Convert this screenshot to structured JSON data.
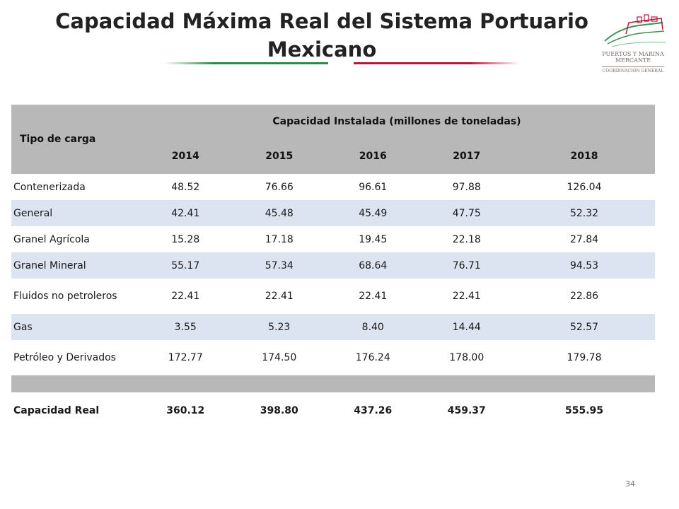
{
  "slide": {
    "title_line1": "Capacidad Máxima Real del Sistema Portuario",
    "title_line2": "Mexicano",
    "page_number": "34",
    "logo": {
      "text_line1": "PUERTOS Y MARINA",
      "text_line2": "MERCANTE",
      "text_sub": "COORDINACIÓN GENERAL",
      "icon": "ship-icon"
    },
    "colors": {
      "green_rule": "#2f8a4a",
      "red_rule": "#b5183a",
      "header_bg": "#b8b8b8",
      "stripe_bg": "#dde4f1"
    }
  },
  "table": {
    "header_type": "Tipo de carga",
    "header_group": "Capacidad Instalada (millones de toneladas)",
    "years": [
      "2014",
      "2015",
      "2016",
      "2017",
      "2018"
    ],
    "rows": [
      {
        "label": "Contenerizada",
        "values": [
          "48.52",
          "76.66",
          "96.61",
          "97.88",
          "126.04"
        ]
      },
      {
        "label": "General",
        "values": [
          "42.41",
          "45.48",
          "45.49",
          "47.75",
          "52.32"
        ]
      },
      {
        "label": "Granel Agrícola",
        "values": [
          "15.28",
          "17.18",
          "19.45",
          "22.18",
          "27.84"
        ]
      },
      {
        "label": "Granel Mineral",
        "values": [
          "55.17",
          "57.34",
          "68.64",
          "76.71",
          "94.53"
        ]
      },
      {
        "label": "Fluidos no petroleros",
        "values": [
          "22.41",
          "22.41",
          "22.41",
          "22.41",
          "22.86"
        ]
      },
      {
        "label": "Gas",
        "values": [
          "3.55",
          "5.23",
          "8.40",
          "14.44",
          "52.57"
        ]
      },
      {
        "label": "Petróleo y Derivados",
        "values": [
          "172.77",
          "174.50",
          "176.24",
          "178.00",
          "179.78"
        ]
      }
    ],
    "total": {
      "label": "Capacidad Real",
      "values": [
        "360.12",
        "398.80",
        "437.26",
        "459.37",
        "555.95"
      ]
    }
  }
}
